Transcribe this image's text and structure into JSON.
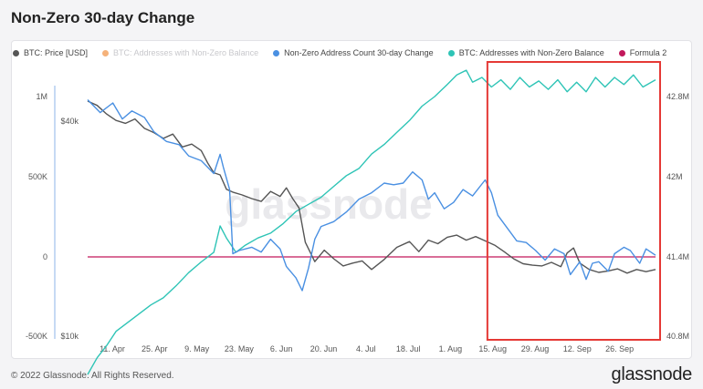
{
  "page": {
    "title": "Non-Zero 30-day Change",
    "footer": "© 2022 Glassnode. All Rights Reserved.",
    "brand": "glassnode",
    "watermark": "glassnode"
  },
  "chart_data": {
    "type": "line",
    "x_ticks": [
      "11. Apr",
      "25. Apr",
      "9. May",
      "23. May",
      "6. Jun",
      "20. Jun",
      "4. Jul",
      "18. Jul",
      "1. Aug",
      "15. Aug",
      "29. Aug",
      "12. Sep",
      "26. Sep"
    ],
    "x_range_days": [
      0,
      180
    ],
    "y_left_ticks": [
      "1M",
      "500K",
      "0",
      "-500K"
    ],
    "y_left_range": [
      -500000,
      1000000
    ],
    "y_price_ticks": [
      "$40k",
      "$10k"
    ],
    "y_right_ticks": [
      "42.8M",
      "42M",
      "41.4M",
      "40.8M"
    ],
    "legend": [
      {
        "name": "BTC: Price [USD]",
        "color": "#555555",
        "muted": false
      },
      {
        "name": "BTC: Addresses with Non-Zero Balance",
        "color": "#f5821f",
        "muted": true
      },
      {
        "name": "Non-Zero Address Count 30-day Change",
        "color": "#4a90e2",
        "muted": false
      },
      {
        "name": "BTC: Addresses with Non-Zero Balance",
        "color": "#2ec4b6",
        "muted": false
      },
      {
        "name": "Formula 2",
        "color": "#c2185b",
        "muted": false
      }
    ],
    "series": [
      {
        "name": "Non-Zero Address Count 30-day Change",
        "color": "#4a90e2",
        "axis": "left",
        "points": [
          [
            0,
            980000
          ],
          [
            4,
            900000
          ],
          [
            8,
            960000
          ],
          [
            11,
            860000
          ],
          [
            14,
            910000
          ],
          [
            18,
            870000
          ],
          [
            21,
            780000
          ],
          [
            25,
            720000
          ],
          [
            29,
            700000
          ],
          [
            32,
            630000
          ],
          [
            36,
            600000
          ],
          [
            38,
            560000
          ],
          [
            40,
            520000
          ],
          [
            42,
            640000
          ],
          [
            43,
            560000
          ],
          [
            45,
            420000
          ],
          [
            46,
            20000
          ],
          [
            48,
            40000
          ],
          [
            52,
            60000
          ],
          [
            55,
            30000
          ],
          [
            58,
            110000
          ],
          [
            61,
            50000
          ],
          [
            63,
            -60000
          ],
          [
            66,
            -130000
          ],
          [
            68,
            -210000
          ],
          [
            70,
            -70000
          ],
          [
            72,
            110000
          ],
          [
            74,
            190000
          ],
          [
            78,
            220000
          ],
          [
            82,
            280000
          ],
          [
            86,
            360000
          ],
          [
            90,
            400000
          ],
          [
            94,
            460000
          ],
          [
            97,
            450000
          ],
          [
            100,
            460000
          ],
          [
            103,
            530000
          ],
          [
            106,
            480000
          ],
          [
            108,
            360000
          ],
          [
            110,
            400000
          ],
          [
            113,
            300000
          ],
          [
            116,
            340000
          ],
          [
            119,
            420000
          ],
          [
            122,
            380000
          ],
          [
            126,
            480000
          ],
          [
            128,
            400000
          ],
          [
            130,
            260000
          ],
          [
            133,
            180000
          ],
          [
            136,
            100000
          ],
          [
            139,
            90000
          ],
          [
            142,
            40000
          ],
          [
            145,
            -20000
          ],
          [
            148,
            50000
          ],
          [
            151,
            20000
          ],
          [
            153,
            -110000
          ],
          [
            156,
            -30000
          ],
          [
            158,
            -140000
          ],
          [
            160,
            -40000
          ],
          [
            162,
            -30000
          ],
          [
            165,
            -90000
          ],
          [
            167,
            20000
          ],
          [
            170,
            60000
          ],
          [
            172,
            40000
          ],
          [
            175,
            -40000
          ],
          [
            177,
            50000
          ],
          [
            180,
            10000
          ]
        ]
      },
      {
        "name": "BTC: Addresses with Non-Zero Balance",
        "color": "#2ec4b6",
        "axis": "right",
        "points": [
          [
            0,
            40.48
          ],
          [
            3,
            40.62
          ],
          [
            6,
            40.72
          ],
          [
            9,
            40.84
          ],
          [
            12,
            40.9
          ],
          [
            16,
            40.98
          ],
          [
            20,
            41.06
          ],
          [
            24,
            41.12
          ],
          [
            28,
            41.22
          ],
          [
            32,
            41.33
          ],
          [
            36,
            41.42
          ],
          [
            40,
            41.5
          ],
          [
            42,
            41.72
          ],
          [
            44,
            41.62
          ],
          [
            47,
            41.5
          ],
          [
            50,
            41.56
          ],
          [
            54,
            41.62
          ],
          [
            58,
            41.66
          ],
          [
            62,
            41.74
          ],
          [
            66,
            41.84
          ],
          [
            70,
            41.9
          ],
          [
            74,
            41.96
          ],
          [
            78,
            42.05
          ],
          [
            82,
            42.14
          ],
          [
            86,
            42.2
          ],
          [
            90,
            42.32
          ],
          [
            94,
            42.4
          ],
          [
            98,
            42.5
          ],
          [
            102,
            42.6
          ],
          [
            106,
            42.72
          ],
          [
            110,
            42.8
          ],
          [
            114,
            42.9
          ],
          [
            117,
            42.98
          ],
          [
            120,
            43.02
          ],
          [
            122,
            42.92
          ],
          [
            125,
            42.96
          ],
          [
            128,
            42.88
          ],
          [
            131,
            42.94
          ],
          [
            134,
            42.86
          ],
          [
            137,
            42.96
          ],
          [
            140,
            42.88
          ],
          [
            143,
            42.93
          ],
          [
            146,
            42.86
          ],
          [
            149,
            42.94
          ],
          [
            152,
            42.84
          ],
          [
            155,
            42.92
          ],
          [
            158,
            42.84
          ],
          [
            161,
            42.96
          ],
          [
            164,
            42.88
          ],
          [
            167,
            42.96
          ],
          [
            170,
            42.9
          ],
          [
            173,
            42.98
          ],
          [
            176,
            42.88
          ],
          [
            180,
            42.94
          ]
        ]
      },
      {
        "name": "BTC: Price [USD]",
        "color": "#555555",
        "axis": "price",
        "points": [
          [
            0,
            42800
          ],
          [
            3,
            42200
          ],
          [
            6,
            41000
          ],
          [
            9,
            40100
          ],
          [
            12,
            39700
          ],
          [
            15,
            40300
          ],
          [
            18,
            39000
          ],
          [
            21,
            38400
          ],
          [
            24,
            37600
          ],
          [
            27,
            38200
          ],
          [
            30,
            36400
          ],
          [
            33,
            36800
          ],
          [
            36,
            35900
          ],
          [
            38,
            34200
          ],
          [
            40,
            32800
          ],
          [
            42,
            32500
          ],
          [
            44,
            30500
          ],
          [
            46,
            30100
          ],
          [
            49,
            29700
          ],
          [
            52,
            29200
          ],
          [
            55,
            28800
          ],
          [
            58,
            30200
          ],
          [
            61,
            29500
          ],
          [
            63,
            30700
          ],
          [
            65,
            29200
          ],
          [
            67,
            27900
          ],
          [
            69,
            23100
          ],
          [
            72,
            20400
          ],
          [
            75,
            22000
          ],
          [
            78,
            20800
          ],
          [
            81,
            19800
          ],
          [
            84,
            20200
          ],
          [
            87,
            20500
          ],
          [
            90,
            19300
          ],
          [
            94,
            20700
          ],
          [
            98,
            22400
          ],
          [
            102,
            23200
          ],
          [
            105,
            21800
          ],
          [
            108,
            23400
          ],
          [
            111,
            22900
          ],
          [
            114,
            23800
          ],
          [
            117,
            24100
          ],
          [
            120,
            23400
          ],
          [
            123,
            23900
          ],
          [
            126,
            23300
          ],
          [
            129,
            22700
          ],
          [
            132,
            21800
          ],
          [
            135,
            20800
          ],
          [
            138,
            20100
          ],
          [
            141,
            19900
          ],
          [
            144,
            19800
          ],
          [
            147,
            20300
          ],
          [
            150,
            19700
          ],
          [
            152,
            21600
          ],
          [
            154,
            22300
          ],
          [
            156,
            20200
          ],
          [
            159,
            19300
          ],
          [
            162,
            18900
          ],
          [
            165,
            19100
          ],
          [
            168,
            19400
          ],
          [
            171,
            18800
          ],
          [
            174,
            19300
          ],
          [
            177,
            19000
          ],
          [
            180,
            19300
          ]
        ]
      },
      {
        "name": "Formula 2",
        "color": "#c2185b",
        "axis": "left",
        "points": [
          [
            0,
            0
          ],
          [
            180,
            0
          ]
        ]
      }
    ],
    "highlight_box": {
      "from_day": 127,
      "to_day": 182,
      "color": "#e53935"
    },
    "grid": false
  }
}
